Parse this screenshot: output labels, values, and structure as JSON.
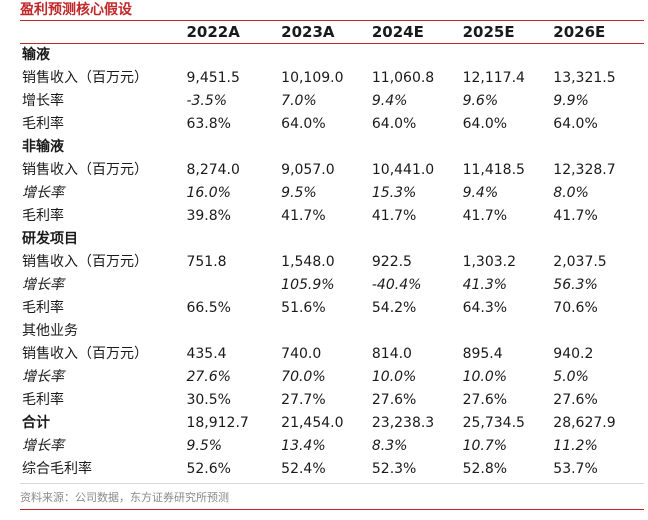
{
  "title": "盈利预测核心假设",
  "columns": [
    "2022A",
    "2023A",
    "2024E",
    "2025E",
    "2026E"
  ],
  "rows": [
    {
      "label": "输液",
      "type": "section",
      "values": []
    },
    {
      "label": "销售收入（百万元）",
      "type": "data",
      "values": [
        "9,451.5",
        "10,109.0",
        "11,060.8",
        "12,117.4",
        "13,321.5"
      ]
    },
    {
      "label": "增长率",
      "type": "growth",
      "values": [
        "-3.5%",
        "7.0%",
        "9.4%",
        "9.6%",
        "9.9%"
      ]
    },
    {
      "label": "毛利率",
      "type": "data",
      "values": [
        "63.8%",
        "64.0%",
        "64.0%",
        "64.0%",
        "64.0%"
      ]
    },
    {
      "label": "非输液",
      "type": "section",
      "values": []
    },
    {
      "label": "销售收入（百万元）",
      "type": "data",
      "values": [
        "8,274.0",
        "9,057.0",
        "10,441.0",
        "11,418.5",
        "12,328.7"
      ]
    },
    {
      "label": "增长率",
      "type": "growth-italic",
      "values": [
        "16.0%",
        "9.5%",
        "15.3%",
        "9.4%",
        "8.0%"
      ]
    },
    {
      "label": "毛利率",
      "type": "data",
      "values": [
        "39.8%",
        "41.7%",
        "41.7%",
        "41.7%",
        "41.7%"
      ]
    },
    {
      "label": "研发项目",
      "type": "section",
      "values": []
    },
    {
      "label": "销售收入（百万元）",
      "type": "data",
      "values": [
        "751.8",
        "1,548.0",
        "922.5",
        "1,303.2",
        "2,037.5"
      ]
    },
    {
      "label": "增长率",
      "type": "growth-italic",
      "values": [
        "",
        "105.9%",
        "-40.4%",
        "41.3%",
        "56.3%"
      ]
    },
    {
      "label": "毛利率",
      "type": "data",
      "values": [
        "66.5%",
        "51.6%",
        "54.2%",
        "64.3%",
        "70.6%"
      ]
    },
    {
      "label": "其他业务",
      "type": "section-plain",
      "values": []
    },
    {
      "label": "销售收入（百万元）",
      "type": "data",
      "values": [
        "435.4",
        "740.0",
        "814.0",
        "895.4",
        "940.2"
      ]
    },
    {
      "label": "增长率",
      "type": "growth-italic",
      "values": [
        "27.6%",
        "70.0%",
        "10.0%",
        "10.0%",
        "5.0%"
      ]
    },
    {
      "label": "毛利率",
      "type": "data",
      "values": [
        "30.5%",
        "27.7%",
        "27.6%",
        "27.6%",
        "27.6%"
      ]
    },
    {
      "label": "合计",
      "type": "total",
      "values": [
        "18,912.7",
        "21,454.0",
        "23,238.3",
        "25,734.5",
        "28,627.9"
      ]
    },
    {
      "label": "增长率",
      "type": "growth-italic",
      "values": [
        "9.5%",
        "13.4%",
        "8.3%",
        "10.7%",
        "11.2%"
      ]
    },
    {
      "label": "综合毛利率",
      "type": "data",
      "values": [
        "52.6%",
        "52.4%",
        "52.3%",
        "52.8%",
        "53.7%"
      ]
    }
  ],
  "source": "资料来源：公司数据，东方证券研究所预测"
}
